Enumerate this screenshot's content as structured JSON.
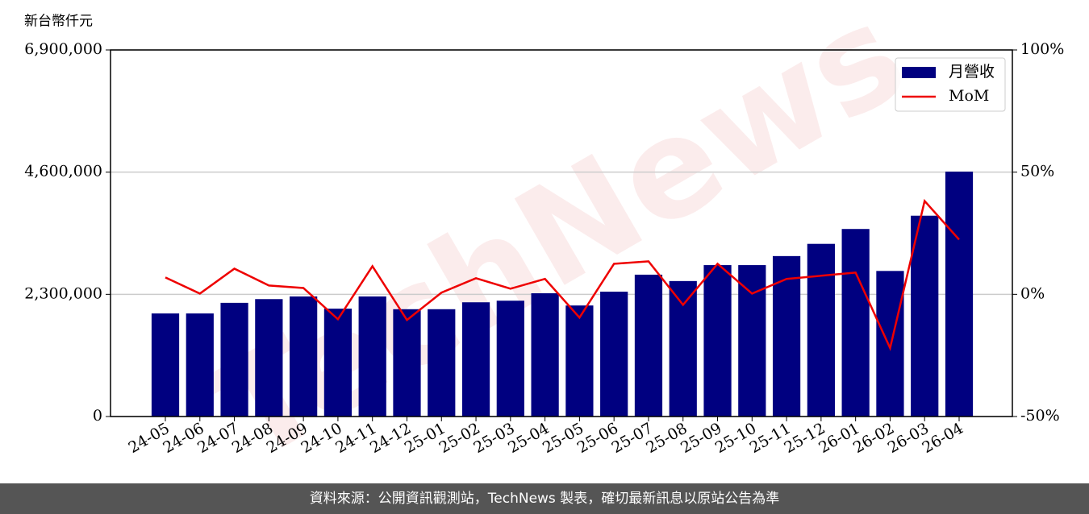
{
  "chart_data": {
    "type": "bar",
    "ylabel": "新台幣仟元",
    "watermark": "TechNews",
    "categories": [
      "24-05",
      "24-06",
      "24-07",
      "24-08",
      "24-09",
      "24-10",
      "24-11",
      "24-12",
      "25-01",
      "25-02",
      "25-03",
      "25-04",
      "25-05",
      "25-06",
      "25-07",
      "25-08",
      "25-09",
      "25-10",
      "25-11",
      "25-12",
      "26-01",
      "26-02",
      "26-03",
      "26-04"
    ],
    "series": [
      {
        "name": "月營收",
        "type": "bar",
        "color": "#000080",
        "values": [
          1940000,
          1940000,
          2140000,
          2210000,
          2260000,
          2030000,
          2260000,
          2020000,
          2020000,
          2150000,
          2180000,
          2320000,
          2090000,
          2350000,
          2670000,
          2550000,
          2850000,
          2850000,
          3020000,
          3250000,
          3530000,
          2740000,
          3780000,
          4610000
        ]
      },
      {
        "name": "MoM",
        "type": "line",
        "color": "#ee0000",
        "axis": "y2",
        "values": [
          6.9,
          0.3,
          10.5,
          3.6,
          2.6,
          -10.2,
          11.5,
          -10.5,
          0.7,
          6.6,
          2.3,
          6.3,
          -9.5,
          12.5,
          13.5,
          -4.3,
          12.5,
          0.3,
          6.3,
          7.6,
          8.9,
          -22,
          38.2,
          22.4
        ]
      }
    ],
    "ylim": [
      0,
      6900000
    ],
    "yticks": [
      0,
      {
        "value": 2300000,
        "label": "2,300,000"
      },
      {
        "value": 4600000,
        "label": "4,600,000"
      },
      {
        "value": 6900000,
        "label": "6,900,000"
      }
    ],
    "y2lim": [
      -50,
      100
    ],
    "y2ticks": [
      {
        "value": -50,
        "label": "-50%"
      },
      {
        "value": 0,
        "label": "0%"
      },
      {
        "value": 50,
        "label": "50%"
      },
      {
        "value": 100,
        "label": "100%"
      }
    ],
    "grid": true,
    "legend": "upper right"
  },
  "footer": "資料來源：公開資訊觀測站，TechNews 製表，確切最新訊息以原站公告為準"
}
